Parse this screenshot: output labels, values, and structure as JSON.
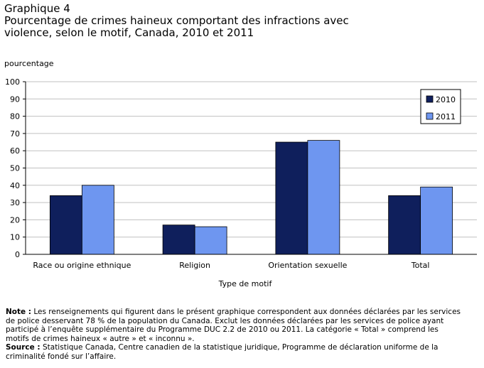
{
  "header": {
    "graph_number": "Graphique 4",
    "title_line1": "Pourcentage de crimes haineux comportant des infractions avec",
    "title_line2": "violence, selon le motif, Canada, 2010 et 2011"
  },
  "chart_data": {
    "type": "bar",
    "ylabel": "pourcentage",
    "xlabel": "Type de motif",
    "ylim": [
      0,
      100
    ],
    "y_ticks": [
      0,
      10,
      20,
      30,
      40,
      50,
      60,
      70,
      80,
      90,
      100
    ],
    "grid": true,
    "legend_position": "top-right",
    "categories": [
      "Race ou origine ethnique",
      "Religion",
      "Orientation sexuelle",
      "Total"
    ],
    "series": [
      {
        "name": "2010",
        "color": "#0f1f5c",
        "values": [
          34,
          17,
          65,
          34
        ]
      },
      {
        "name": "2011",
        "color": "#6e96f0",
        "values": [
          40,
          16,
          66,
          39
        ]
      }
    ]
  },
  "notes": {
    "note_label": "Note :",
    "note_text_line1": " Les renseignements qui figurent dans le présent graphique correspondent aux données déclarées par les services",
    "note_text_line2": "de police desservant 78 % de la population du Canada. Exclut les données déclarées par les services de police ayant",
    "note_text_line3": "participé à l’enquête supplémentaire du Programme DUC 2.2 de 2010 ou 2011. La catégorie « Total » comprend les",
    "note_text_line4": "motifs de crimes haineux « autre » et « inconnu ».",
    "source_label": "Source :",
    "source_text_line1": " Statistique Canada, Centre canadien de la statistique juridique, Programme de déclaration uniforme de la",
    "source_text_line2": "criminalité fondé sur l’affaire."
  }
}
